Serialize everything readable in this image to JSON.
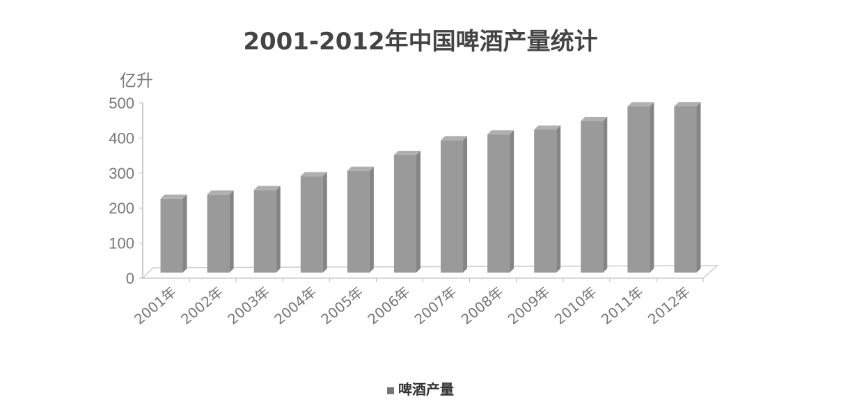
{
  "chart_data": {
    "type": "bar",
    "title": "2001-2012年中国啤酒产量统计",
    "ylabel": "亿升",
    "xlabel": "",
    "categories": [
      "2001年",
      "2002年",
      "2003年",
      "2004年",
      "2005年",
      "2006年",
      "2007年",
      "2008年",
      "2009年",
      "2010年",
      "2011年",
      "2012年"
    ],
    "series": [
      {
        "name": "啤酒产量",
        "values": [
          226.6,
          238.6,
          251.5,
          291.0,
          306.2,
          351.5,
          393.1,
          410.3,
          423.6,
          448.3,
          489.9,
          490.2
        ]
      }
    ],
    "ylim": [
      0,
      500
    ],
    "yticks": [
      0,
      100,
      200,
      300,
      400,
      500
    ],
    "grid": false,
    "legend": "bottom",
    "bar_color": "#9a9a9a",
    "style": "3d-column"
  }
}
